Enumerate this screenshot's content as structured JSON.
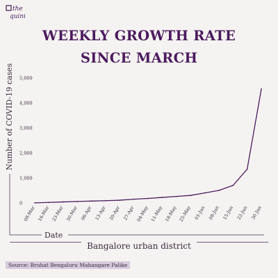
{
  "brand": {
    "logo_text_1": "the",
    "logo_text_2": "quint",
    "color": "#4b1a5e"
  },
  "header": {
    "title_line1": "WEEKLY GROWTH RATE",
    "title_line2": "SINCE MARCH"
  },
  "footer": {
    "label": "Bangalore urban district",
    "source": "Source: Bruhat Bengaluru Mahangare Palike"
  },
  "colors": {
    "line": "#4b1a5e",
    "axis": "#6e5a78",
    "text": "#3a2a40"
  },
  "chart_data": {
    "type": "line",
    "title": "WEEKLY GROWTH RATE SINCE MARCH",
    "xlabel": "Date",
    "ylabel": "Number of COVID-19 cases",
    "categories": [
      "08-Mar",
      "16-Mar",
      "23-Mar",
      "30-Mar",
      "06-Apr",
      "13-Apr",
      "20-Apr",
      "27-Apr",
      "04-May",
      "11-May",
      "18-May",
      "25-May",
      "01-Jun",
      "08-Jun",
      "15-Jun",
      "22-Jun",
      "30 Jun"
    ],
    "yticks": [
      0,
      1000,
      2000,
      3000,
      4000,
      5000
    ],
    "ytick_labels": [
      "0",
      "1,000",
      "2,000",
      "3,000",
      "4,000",
      "5,000"
    ],
    "ylim": [
      0,
      5000
    ],
    "values": [
      4,
      20,
      40,
      60,
      75,
      90,
      110,
      150,
      180,
      220,
      260,
      300,
      400,
      500,
      700,
      1350,
      4550
    ],
    "grid": false
  }
}
